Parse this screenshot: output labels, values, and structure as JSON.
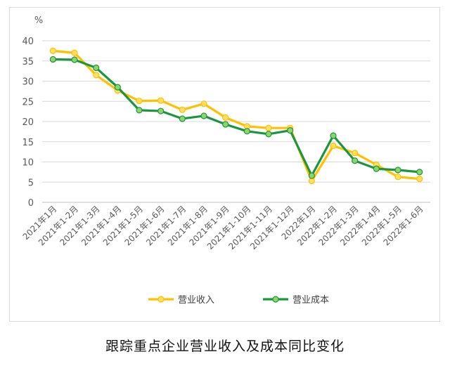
{
  "caption": "跟踪重点企业营业收入及成本同比变化",
  "chart_data": {
    "type": "line",
    "ylabel": "%",
    "ylim": [
      0,
      40
    ],
    "yticks": [
      0,
      5,
      10,
      15,
      20,
      25,
      30,
      35,
      40
    ],
    "grid": true,
    "legend_position": "bottom",
    "categories": [
      "2021年1月",
      "2021年1-2月",
      "2021年1-3月",
      "2021年1-4月",
      "2021年1-5月",
      "2021年1-6月",
      "2021年1-7月",
      "2021年1-8月",
      "2021年1-9月",
      "2021年1-10月",
      "2021年1-11月",
      "2021年1-12月",
      "2022年1月",
      "2022年1-2月",
      "2022年1-3月",
      "2022年1-4月",
      "2022年1-5月",
      "2022年1-6月"
    ],
    "series": [
      {
        "name": "营业收入",
        "color": "#ffc000",
        "marker_fill": "#ffe066",
        "values": [
          37.5,
          37.0,
          31.5,
          27.7,
          25.1,
          25.2,
          22.9,
          24.4,
          21.0,
          18.8,
          18.4,
          18.4,
          5.3,
          14.0,
          12.2,
          9.3,
          6.3,
          5.8
        ]
      },
      {
        "name": "营业成本",
        "color": "#1a9641",
        "marker_fill": "#8fd46a",
        "values": [
          35.4,
          35.3,
          33.3,
          28.5,
          22.8,
          22.6,
          20.7,
          21.4,
          19.3,
          17.6,
          16.9,
          17.8,
          6.6,
          16.5,
          10.3,
          8.3,
          8.0,
          7.5
        ]
      }
    ]
  }
}
